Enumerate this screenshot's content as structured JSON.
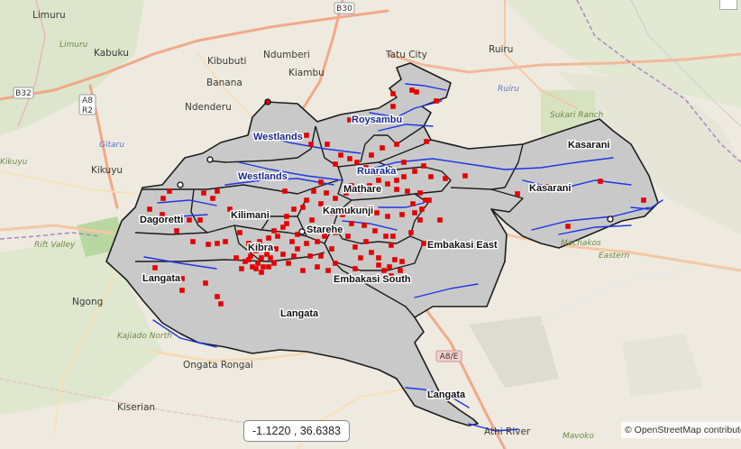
{
  "map": {
    "coordinate_readout": "-1.1220 , 36.6383",
    "attribution": "© OpenStreetMap contributors",
    "boundary_color": "#1c1c1c",
    "fill_color": "#c9c9c9",
    "marker_color": "#e60000",
    "river_color": "#1d35e6"
  },
  "road_labels": [
    "B30",
    "B32",
    "A8",
    "R2",
    "A8/E"
  ],
  "places": {
    "limuru": "Limuru",
    "kabuku": "Kabuku",
    "kibubuti": "Kibubuti",
    "ndumberi": "Ndumberi",
    "kiambu": "Kiambu",
    "tatu_city": "Tatu City",
    "ruiru": "Ruiru",
    "banana": "Banana",
    "ndenderu": "Ndenderu",
    "kikuyu": "Kikuyu",
    "ngong": "Ngong",
    "ongata_rongai": "Ongata Rongai",
    "kiserian": "Kiserian",
    "athi_river": "Athi River",
    "rift_valley": "Rift Valley",
    "machakos": "Machakos",
    "eastern": "Eastern",
    "gitaru": "Gitaru",
    "kikuyu_it": "Kikuyu",
    "limuru_it": "Limuru",
    "ruiru_it": "Ruiru",
    "sukari_ranch": "Sukari Ranch",
    "kajiado_north": "Kajiado North",
    "mavoko": "Mavoko"
  },
  "regions": {
    "roysambu": "Roysambu",
    "westlands_top": "Westlands",
    "westlands": "Westlands",
    "ruaraka": "Ruaraka",
    "kasarani_top": "Kasarani",
    "kasarani": "Kasarani",
    "dagoretti": "Dagoretti",
    "kilimani": "Kilimani",
    "mathare": "Mathare",
    "kamukunji": "Kamukunji",
    "starehe": "Starehe",
    "kibra": "Kibra",
    "embakasi_east": "Embakasi East",
    "embakasi_south": "Embakasi South",
    "langata_west": "Langata",
    "langata": "Langata",
    "langata_south": "Langata"
  }
}
